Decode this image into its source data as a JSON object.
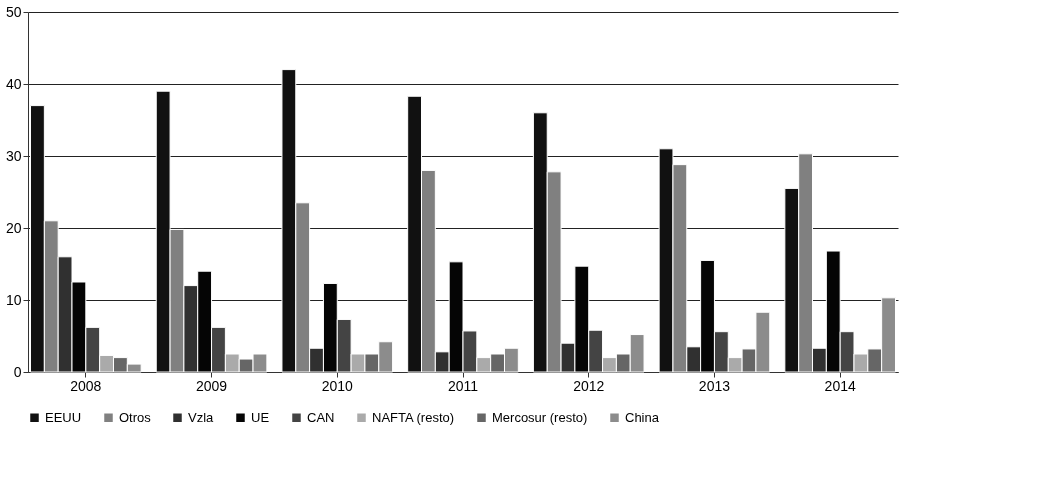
{
  "chart_data": {
    "type": "bar",
    "categories": [
      "2008",
      "2009",
      "2010",
      "2011",
      "2012",
      "2013",
      "2014"
    ],
    "series": [
      {
        "name": "EEUU",
        "color": "#111111",
        "values": [
          37,
          39,
          42,
          38.3,
          36,
          31,
          25.5
        ]
      },
      {
        "name": "Otros",
        "color": "#808080",
        "values": [
          21,
          19.8,
          23.5,
          28,
          27.8,
          28.8,
          30.3
        ]
      },
      {
        "name": "Vzla",
        "color": "#303030",
        "values": [
          16,
          12,
          3.3,
          2.8,
          4,
          3.5,
          3.3
        ]
      },
      {
        "name": "UE",
        "color": "#050505",
        "values": [
          12.5,
          14,
          12.3,
          15.3,
          14.7,
          15.5,
          16.8
        ]
      },
      {
        "name": "CAN",
        "color": "#444444",
        "values": [
          6.2,
          6.2,
          7.3,
          5.7,
          5.8,
          5.6,
          5.6
        ]
      },
      {
        "name": "NAFTA (resto)",
        "color": "#aaaaaa",
        "values": [
          2.3,
          2.5,
          2.5,
          2,
          2,
          2,
          2.5
        ]
      },
      {
        "name": "Mercosur (resto)",
        "color": "#666666",
        "values": [
          2,
          1.8,
          2.5,
          2.5,
          2.5,
          3.2,
          3.2
        ]
      },
      {
        "name": "China",
        "color": "#8c8c8c",
        "values": [
          1.1,
          2.5,
          4.2,
          3.3,
          5.2,
          8.3,
          10.3
        ]
      }
    ],
    "ylim": [
      0,
      50
    ],
    "yticks": [
      0,
      10,
      20,
      30,
      40,
      50
    ],
    "grid": "y",
    "legend": "bottom"
  }
}
